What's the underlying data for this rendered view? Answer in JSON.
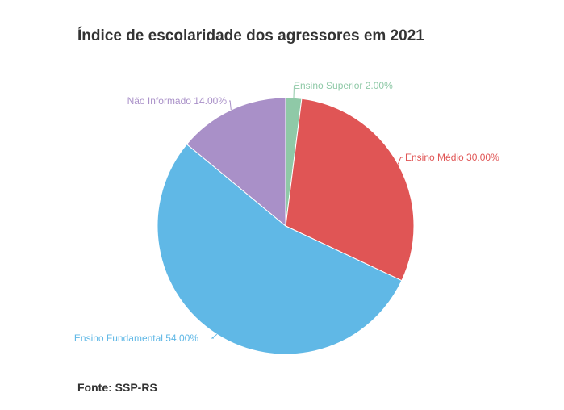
{
  "title": "Índice de escolaridade dos agressores em 2021",
  "source": "Fonte: SSP-RS",
  "chart_data": {
    "type": "pie",
    "title": "Índice de escolaridade dos agressores em 2021",
    "start_angle_deg": 0,
    "direction": "clockwise",
    "slices": [
      {
        "label": "Ensino Superior",
        "value": 2.0,
        "display": "Ensino Superior 2.00%",
        "color": "#8fc9a7"
      },
      {
        "label": "Ensino Médio",
        "value": 30.0,
        "display": "Ensino Médio 30.00%",
        "color": "#e05555"
      },
      {
        "label": "Ensino Fundamental",
        "value": 54.0,
        "display": "Ensino Fundamental 54.00%",
        "color": "#60b8e6"
      },
      {
        "label": "Não Informado",
        "value": 14.0,
        "display": "Não Informado 14.00%",
        "color": "#a990c8"
      }
    ]
  }
}
